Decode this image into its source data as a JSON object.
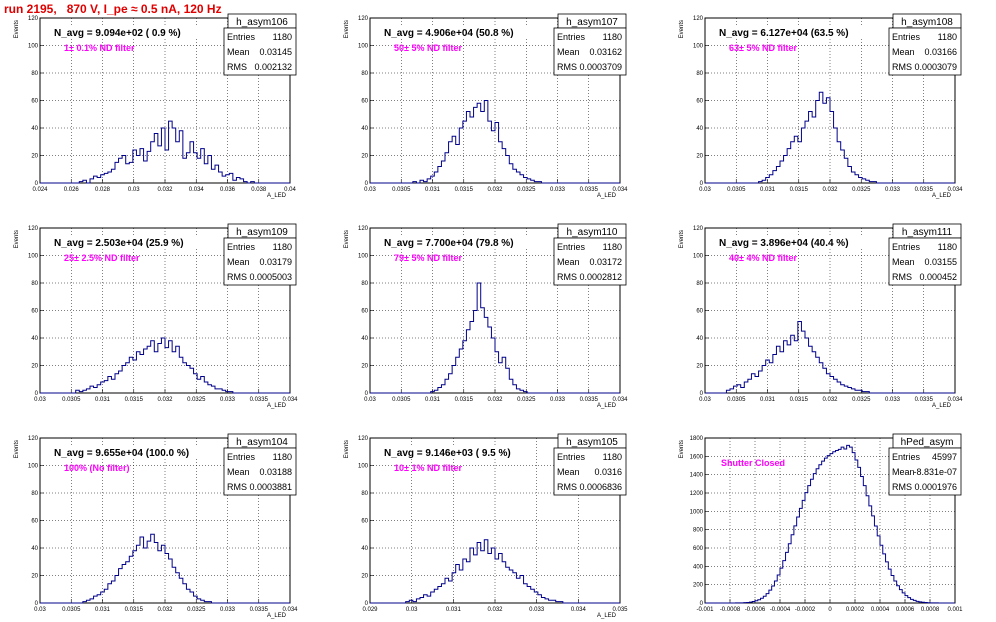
{
  "header": {
    "run_title": "run 2195,   870 V, I_pe ≈ 0.5 nA, 120 Hz"
  },
  "colors": {
    "line": "#00008b",
    "label": "#ff00ff",
    "title": "#e00000",
    "grid": "#000000"
  },
  "chart_data": [
    {
      "type": "bar",
      "hist_name": "h_asym106",
      "navg": "N_avg = 9.094e+02 ( 0.9 %)",
      "filter": "1± 0.1% ND filter",
      "stats": {
        "entries_label": "Entries",
        "entries": "1180",
        "mean_label": "Mean",
        "mean": "0.03145",
        "rms_label": "RMS",
        "rms": "0.002132"
      },
      "ylabel": "Events",
      "xlabel": "A_LED",
      "xlim": [
        0.024,
        0.04
      ],
      "ylim": [
        0,
        120
      ],
      "xticks": [
        "0.024",
        "0.026",
        "0.028",
        "0.03",
        "0.032",
        "0.034",
        "0.036",
        "0.038",
        "0.04"
      ],
      "yticks": [
        "0",
        "20",
        "40",
        "60",
        "80",
        "100",
        "120"
      ],
      "values": [
        0,
        0,
        0,
        0,
        0,
        0,
        0,
        0,
        0,
        0,
        0,
        1,
        2,
        0,
        3,
        5,
        4,
        6,
        7,
        8,
        10,
        15,
        18,
        20,
        14,
        15,
        24,
        20,
        25,
        16,
        23,
        30,
        36,
        27,
        40,
        24,
        45,
        40,
        30,
        38,
        18,
        22,
        30,
        22,
        18,
        25,
        14,
        20,
        10,
        13,
        8,
        5,
        6,
        7,
        2,
        4,
        3,
        1,
        0,
        1,
        0,
        0,
        0,
        0,
        0,
        0,
        0,
        0,
        0,
        0
      ]
    },
    {
      "type": "bar",
      "hist_name": "h_asym107",
      "navg": "N_avg = 4.906e+04 (50.8 %)",
      "filter": "50± 5% ND filter",
      "stats": {
        "entries_label": "Entries",
        "entries": "1180",
        "mean_label": "Mean",
        "mean": "0.03162",
        "rms_label": "RMS",
        "rms": "0.0003709"
      },
      "ylabel": "Events",
      "xlabel": "A_LED",
      "xlim": [
        0.03,
        0.034
      ],
      "ylim": [
        0,
        120
      ],
      "xticks": [
        "0.03",
        "0.0305",
        "0.031",
        "0.0315",
        "0.032",
        "0.0325",
        "0.033",
        "0.0335",
        "0.034"
      ],
      "yticks": [
        "0",
        "20",
        "40",
        "60",
        "80",
        "100",
        "120"
      ],
      "values": [
        0,
        0,
        0,
        0,
        0,
        0,
        0,
        0,
        0,
        0,
        0,
        0,
        1,
        0,
        2,
        1,
        3,
        5,
        8,
        12,
        16,
        22,
        30,
        34,
        28,
        40,
        45,
        52,
        48,
        55,
        58,
        52,
        60,
        45,
        38,
        44,
        30,
        25,
        20,
        14,
        10,
        8,
        6,
        4,
        3,
        2,
        1,
        1,
        0,
        0,
        0,
        0,
        0,
        0,
        0,
        0,
        0,
        0,
        0,
        0,
        0,
        0,
        0,
        0,
        0,
        0,
        0,
        0,
        0,
        0
      ]
    },
    {
      "type": "bar",
      "hist_name": "h_asym108",
      "navg": "N_avg = 6.127e+04 (63.5 %)",
      "filter": "63± 5% ND filter",
      "stats": {
        "entries_label": "Entries",
        "entries": "1180",
        "mean_label": "Mean",
        "mean": "0.03166",
        "rms_label": "RMS",
        "rms": "0.0003079"
      },
      "ylabel": "Events",
      "xlabel": "A_LED",
      "xlim": [
        0.03,
        0.034
      ],
      "ylim": [
        0,
        120
      ],
      "xticks": [
        "0.03",
        "0.0305",
        "0.031",
        "0.0315",
        "0.032",
        "0.0325",
        "0.033",
        "0.0335",
        "0.034"
      ],
      "yticks": [
        "0",
        "20",
        "40",
        "60",
        "80",
        "100",
        "120"
      ],
      "values": [
        0,
        0,
        0,
        0,
        0,
        0,
        0,
        0,
        0,
        0,
        0,
        0,
        0,
        0,
        0,
        1,
        2,
        4,
        6,
        9,
        12,
        16,
        20,
        25,
        30,
        34,
        30,
        40,
        45,
        52,
        48,
        60,
        66,
        58,
        62,
        52,
        40,
        30,
        24,
        18,
        12,
        8,
        6,
        4,
        3,
        2,
        1,
        1,
        0,
        0,
        0,
        0,
        0,
        0,
        0,
        0,
        0,
        0,
        0,
        0,
        0,
        0,
        0,
        0,
        0,
        0,
        0,
        0,
        0,
        0
      ]
    },
    {
      "type": "bar",
      "hist_name": "h_asym109",
      "navg": "N_avg = 2.503e+04 (25.9 %)",
      "filter": "25± 2.5% ND filter",
      "stats": {
        "entries_label": "Entries",
        "entries": "1180",
        "mean_label": "Mean",
        "mean": "0.03179",
        "rms_label": "RMS",
        "rms": "0.0005003"
      },
      "ylabel": "Events",
      "xlabel": "A_LED",
      "xlim": [
        0.03,
        0.034
      ],
      "ylim": [
        0,
        120
      ],
      "xticks": [
        "0.03",
        "0.0305",
        "0.031",
        "0.0315",
        "0.032",
        "0.0325",
        "0.033",
        "0.0335",
        "0.034"
      ],
      "yticks": [
        "0",
        "20",
        "40",
        "60",
        "80",
        "100",
        "120"
      ],
      "values": [
        0,
        0,
        0,
        0,
        0,
        0,
        0,
        0,
        0,
        0,
        2,
        1,
        2,
        3,
        5,
        4,
        6,
        8,
        9,
        12,
        10,
        14,
        16,
        20,
        22,
        26,
        24,
        30,
        28,
        32,
        34,
        38,
        30,
        36,
        40,
        33,
        38,
        30,
        34,
        26,
        22,
        20,
        18,
        14,
        10,
        12,
        8,
        6,
        5,
        3,
        3,
        2,
        1,
        1,
        0,
        0,
        0,
        0,
        0,
        0,
        0,
        0,
        0,
        0,
        0,
        0,
        0,
        0,
        0,
        0
      ]
    },
    {
      "type": "bar",
      "hist_name": "h_asym110",
      "navg": "N_avg = 7.700e+04 (79.8 %)",
      "filter": "79± 5% ND filter",
      "stats": {
        "entries_label": "Entries",
        "entries": "1180",
        "mean_label": "Mean",
        "mean": "0.03172",
        "rms_label": "RMS",
        "rms": "0.0002812"
      },
      "ylabel": "Events",
      "xlabel": "A_LED",
      "xlim": [
        0.03,
        0.034
      ],
      "ylim": [
        0,
        120
      ],
      "xticks": [
        "0.03",
        "0.0305",
        "0.031",
        "0.0315",
        "0.032",
        "0.0325",
        "0.033",
        "0.0335",
        "0.034"
      ],
      "yticks": [
        "0",
        "20",
        "40",
        "60",
        "80",
        "100",
        "120"
      ],
      "values": [
        0,
        0,
        0,
        0,
        0,
        0,
        0,
        0,
        0,
        0,
        0,
        0,
        0,
        0,
        0,
        0,
        0,
        1,
        2,
        4,
        6,
        10,
        14,
        20,
        26,
        32,
        38,
        46,
        52,
        60,
        80,
        62,
        55,
        48,
        40,
        30,
        22,
        26,
        18,
        10,
        6,
        3,
        2,
        1,
        0,
        0,
        0,
        0,
        0,
        0,
        0,
        0,
        0,
        0,
        0,
        0,
        0,
        0,
        0,
        0,
        0,
        0,
        0,
        0,
        0,
        0,
        0,
        0,
        0,
        0
      ]
    },
    {
      "type": "bar",
      "hist_name": "h_asym111",
      "navg": "N_avg = 3.896e+04 (40.4 %)",
      "filter": "40± 4% ND filter",
      "stats": {
        "entries_label": "Entries",
        "entries": "1180",
        "mean_label": "Mean",
        "mean": "0.03155",
        "rms_label": "RMS",
        "rms": "0.000452"
      },
      "ylabel": "Events",
      "xlabel": "A_LED",
      "xlim": [
        0.03,
        0.034
      ],
      "ylim": [
        0,
        120
      ],
      "xticks": [
        "0.03",
        "0.0305",
        "0.031",
        "0.0315",
        "0.032",
        "0.0325",
        "0.033",
        "0.0335",
        "0.034"
      ],
      "yticks": [
        "0",
        "20",
        "40",
        "60",
        "80",
        "100",
        "120"
      ],
      "values": [
        0,
        0,
        0,
        0,
        0,
        0,
        2,
        3,
        5,
        6,
        4,
        8,
        10,
        14,
        12,
        16,
        20,
        24,
        22,
        28,
        34,
        30,
        38,
        35,
        42,
        38,
        52,
        45,
        40,
        34,
        30,
        26,
        22,
        18,
        14,
        12,
        10,
        8,
        6,
        5,
        4,
        3,
        2,
        2,
        1,
        1,
        0,
        0,
        0,
        0,
        0,
        0,
        0,
        0,
        0,
        0,
        0,
        0,
        0,
        0,
        0,
        0,
        0,
        0,
        0,
        0,
        0,
        0,
        0,
        0
      ]
    },
    {
      "type": "bar",
      "hist_name": "h_asym104",
      "navg": "N_avg = 9.655e+04 (100.0 %)",
      "filter": "100% (No filter)",
      "stats": {
        "entries_label": "Entries",
        "entries": "1180",
        "mean_label": "Mean",
        "mean": "0.03188",
        "rms_label": "RMS",
        "rms": "0.0003881"
      },
      "ylabel": "Events",
      "xlabel": "A_LED",
      "xlim": [
        0.03,
        0.034
      ],
      "ylim": [
        0,
        120
      ],
      "xticks": [
        "0.03",
        "0.0305",
        "0.031",
        "0.0315",
        "0.032",
        "0.0325",
        "0.033",
        "0.0335",
        "0.034"
      ],
      "yticks": [
        "0",
        "20",
        "40",
        "60",
        "80",
        "100",
        "120"
      ],
      "values": [
        0,
        0,
        0,
        0,
        0,
        0,
        0,
        0,
        0,
        0,
        0,
        0,
        1,
        2,
        3,
        5,
        6,
        8,
        10,
        14,
        16,
        20,
        25,
        28,
        30,
        34,
        38,
        42,
        48,
        40,
        45,
        50,
        44,
        38,
        42,
        36,
        32,
        26,
        22,
        18,
        14,
        10,
        8,
        5,
        3,
        2,
        1,
        1,
        0,
        0,
        0,
        0,
        0,
        0,
        0,
        0,
        0,
        0,
        0,
        0,
        0,
        0,
        0,
        0,
        0,
        0,
        0,
        0,
        0,
        0
      ]
    },
    {
      "type": "bar",
      "hist_name": "h_asym105",
      "navg": "N_avg = 9.146e+03 ( 9.5 %)",
      "filter": "10± 1% ND filter",
      "stats": {
        "entries_label": "Entries",
        "entries": "1180",
        "mean_label": "Mean",
        "mean": "0.0316",
        "rms_label": "RMS",
        "rms": "0.0006836"
      },
      "ylabel": "Events",
      "xlabel": "A_LED",
      "xlim": [
        0.029,
        0.035
      ],
      "ylim": [
        0,
        120
      ],
      "xticks": [
        "0.029",
        "0.03",
        "0.031",
        "0.032",
        "0.033",
        "0.034",
        "0.035"
      ],
      "yticks": [
        "0",
        "20",
        "40",
        "60",
        "80",
        "100",
        "120"
      ],
      "values": [
        0,
        0,
        0,
        0,
        0,
        0,
        0,
        0,
        0,
        0,
        1,
        2,
        1,
        3,
        4,
        6,
        5,
        8,
        10,
        12,
        14,
        18,
        16,
        22,
        28,
        24,
        32,
        30,
        40,
        35,
        44,
        38,
        46,
        36,
        40,
        32,
        36,
        30,
        26,
        24,
        22,
        18,
        20,
        14,
        12,
        10,
        8,
        6,
        4,
        3,
        2,
        2,
        1,
        1,
        0,
        0,
        0,
        0,
        0,
        0,
        0,
        0,
        0,
        0,
        0,
        0,
        0,
        0,
        0,
        0
      ]
    },
    {
      "type": "bar",
      "hist_name": "hPed_asym",
      "navg": "",
      "filter": "Shutter Closed",
      "stats": {
        "entries_label": "Entries",
        "entries": "45997",
        "mean_label": "Mean",
        "mean": "-8.831e-07",
        "rms_label": "RMS",
        "rms": "0.0001976"
      },
      "ylabel": "Events",
      "xlabel": "",
      "xlim": [
        -0.001,
        0.001
      ],
      "ylim": [
        0,
        1800
      ],
      "xticks": [
        "-0.001",
        "-0.0008",
        "-0.0006",
        "-0.0004",
        "-0.0002",
        "0",
        "0.0002",
        "0.0004",
        "0.0006",
        "0.0008",
        "0.001"
      ],
      "yticks": [
        "0",
        "200",
        "400",
        "600",
        "800",
        "1000",
        "1200",
        "1400",
        "1600",
        "1800"
      ],
      "values": [
        0,
        0,
        0,
        0,
        0,
        0,
        0,
        0,
        0,
        0,
        0,
        1,
        2,
        2,
        4,
        6,
        10,
        16,
        24,
        36,
        52,
        74,
        102,
        140,
        186,
        240,
        306,
        380,
        462,
        552,
        646,
        744,
        842,
        938,
        1032,
        1120,
        1204,
        1280,
        1350,
        1412,
        1464,
        1508,
        1548,
        1580,
        1608,
        1630,
        1650,
        1664,
        1676,
        1700,
        1680,
        1720,
        1700,
        1640,
        1560,
        1480,
        1380,
        1280,
        1170,
        1060,
        950,
        840,
        732,
        630,
        536,
        448,
        370,
        300,
        240,
        188,
        146,
        110,
        80,
        58,
        40,
        28,
        18,
        12,
        8,
        5,
        3,
        2,
        1,
        1,
        0,
        0,
        0,
        0,
        0,
        0
      ]
    }
  ]
}
